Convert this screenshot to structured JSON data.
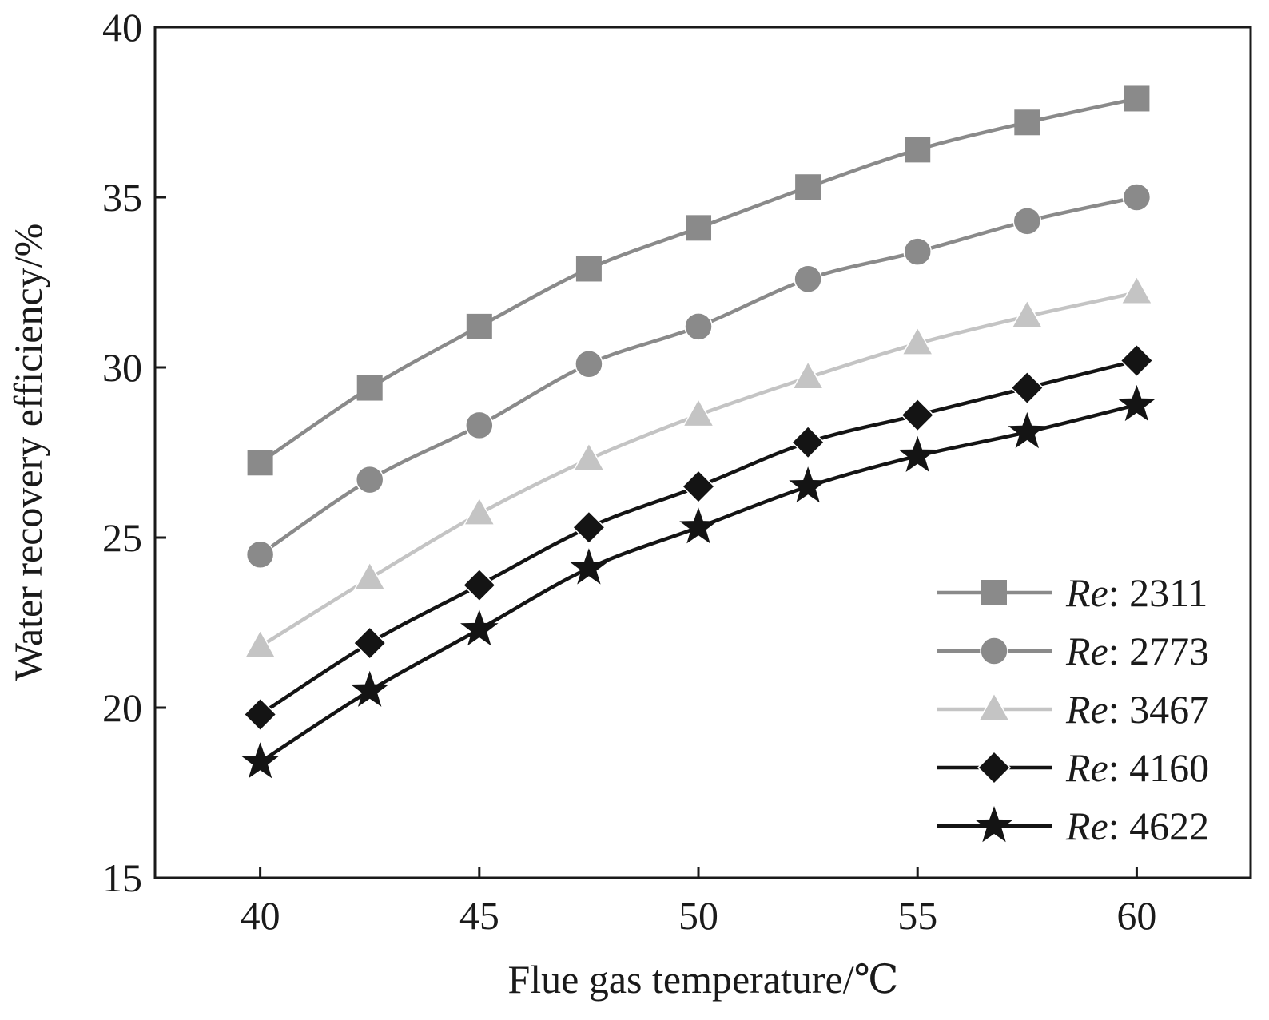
{
  "chart_data": {
    "type": "line",
    "title": "",
    "xlabel": "Flue gas temperature/℃",
    "ylabel": "Water recovery efficiency/%",
    "xlim": [
      37.6,
      62.6
    ],
    "ylim": [
      15,
      40
    ],
    "xticks": [
      40,
      45,
      50,
      55,
      60
    ],
    "yticks": [
      15,
      20,
      25,
      30,
      35,
      40
    ],
    "x": [
      40,
      42.5,
      45,
      47.5,
      50,
      52.5,
      55,
      57.5,
      60
    ],
    "legend_position": "bottom-right",
    "legend_prefix": "Re",
    "series": [
      {
        "name": "Re: 2311",
        "label": "2311",
        "marker": "square",
        "color": "#8a8a8a",
        "values": [
          27.2,
          29.4,
          31.2,
          32.9,
          34.1,
          35.3,
          36.4,
          37.2,
          37.9
        ]
      },
      {
        "name": "Re: 2773",
        "label": "2773",
        "marker": "circle",
        "color": "#8a8a8a",
        "values": [
          24.5,
          26.7,
          28.3,
          30.1,
          31.2,
          32.6,
          33.4,
          34.3,
          35.0
        ]
      },
      {
        "name": "Re: 3467",
        "label": "3467",
        "marker": "triangle",
        "color": "#c4c4c4",
        "values": [
          21.8,
          23.8,
          25.7,
          27.3,
          28.6,
          29.7,
          30.7,
          31.5,
          32.2
        ]
      },
      {
        "name": "Re: 4160",
        "label": "4160",
        "marker": "diamond",
        "color": "#141414",
        "values": [
          19.8,
          21.9,
          23.6,
          25.3,
          26.5,
          27.8,
          28.6,
          29.4,
          30.2
        ]
      },
      {
        "name": "Re: 4622",
        "label": "4622",
        "marker": "star",
        "color": "#141414",
        "values": [
          18.4,
          20.5,
          22.3,
          24.1,
          25.3,
          26.5,
          27.4,
          28.1,
          28.9
        ]
      }
    ]
  }
}
